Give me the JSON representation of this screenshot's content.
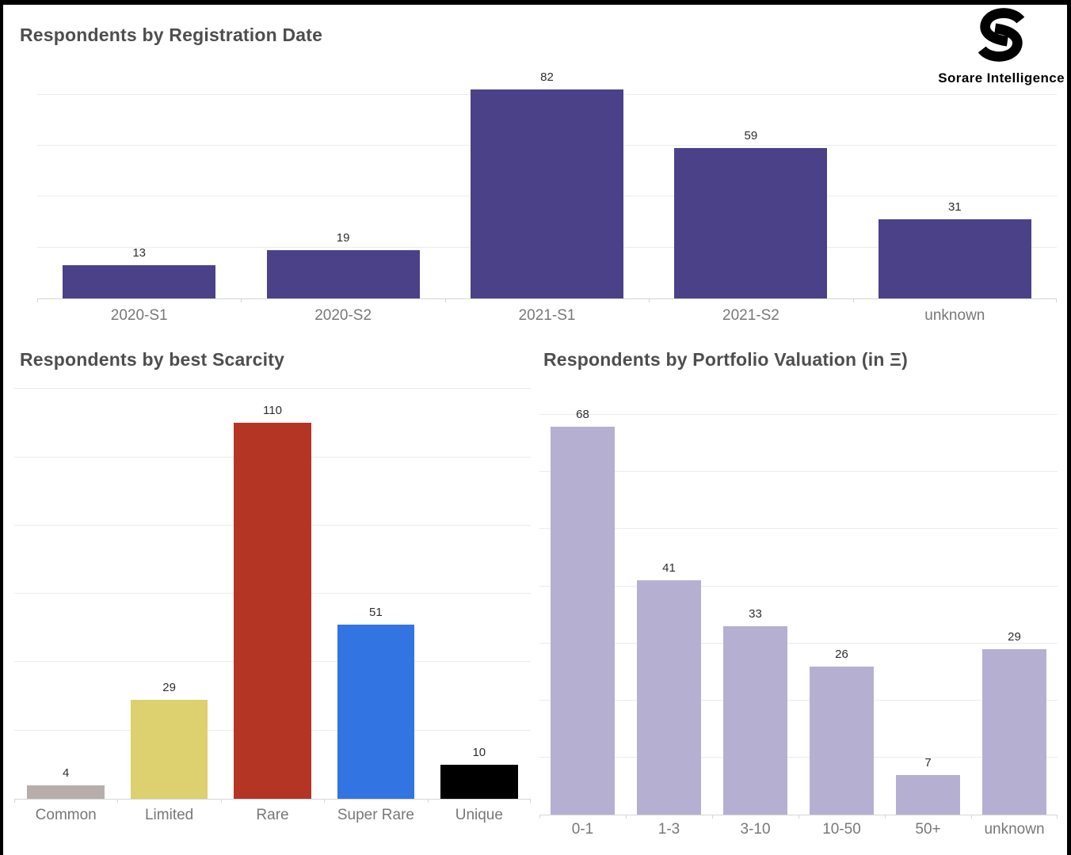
{
  "logo": {
    "brand": "Sorare Intelligence"
  },
  "colors": {
    "registration_bar": "#4a4189",
    "valuation_bar": "#b5b0d2",
    "scarcity_bars": [
      "#b7aeab",
      "#ddd06e",
      "#b43524",
      "#3374e3",
      "#000000"
    ],
    "grid": "#ececec",
    "axis": "#d6d6d6",
    "title_text": "#4e4e4e",
    "axis_label_text": "#787878",
    "value_label_text": "#2e2e2e"
  },
  "chart_data": [
    {
      "id": "registration",
      "type": "bar",
      "title": "Respondents by Registration Date",
      "categories": [
        "2020-S1",
        "2020-S2",
        "2021-S1",
        "2021-S2",
        "unknown"
      ],
      "values": [
        13,
        19,
        82,
        59,
        31
      ],
      "bar_color": "#4a4189",
      "xlabel": "",
      "ylabel": "",
      "ylim": [
        0,
        96
      ],
      "grid_step": 20,
      "grid": true,
      "legend": "none",
      "value_labels": true
    },
    {
      "id": "scarcity",
      "type": "bar",
      "title": "Respondents by best Scarcity",
      "categories": [
        "Common",
        "Limited",
        "Rare",
        "Super Rare",
        "Unique"
      ],
      "values": [
        4,
        29,
        110,
        51,
        10
      ],
      "bar_colors": [
        "#b7aeab",
        "#ddd06e",
        "#b43524",
        "#3374e3",
        "#000000"
      ],
      "xlabel": "",
      "ylabel": "",
      "ylim": [
        0,
        121
      ],
      "grid_step": 20,
      "grid": true,
      "legend": "none",
      "value_labels": true
    },
    {
      "id": "valuation",
      "type": "bar",
      "title": "Respondents by Portfolio Valuation (in Ξ)",
      "categories": [
        "0-1",
        "1-3",
        "3-10",
        "10-50",
        "50+",
        "unknown"
      ],
      "values": [
        68,
        41,
        33,
        26,
        7,
        29
      ],
      "bar_color": "#b5b0d2",
      "xlabel": "",
      "ylabel": "",
      "ylim": [
        0,
        71
      ],
      "grid_step": 10,
      "grid": true,
      "legend": "none",
      "value_labels": true
    }
  ]
}
